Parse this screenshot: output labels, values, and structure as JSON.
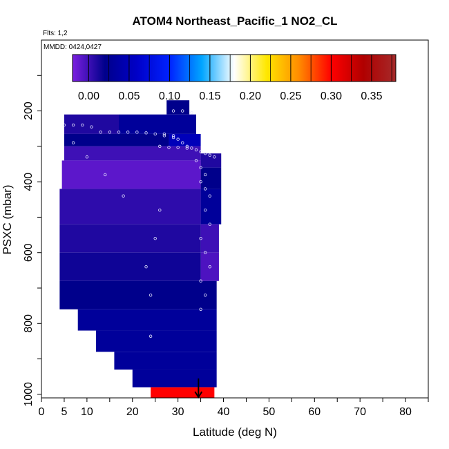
{
  "chart_data": {
    "type": "heatmap",
    "title": "ATOM4 Northeast_Pacific_1 NO2_CL",
    "annotations": {
      "flights": "Flts: 1,2",
      "dates": "MMDD: 0424,0427"
    },
    "xlabel": "Latitude (deg N)",
    "ylabel": "PSXC (mbar)",
    "xlim": [
      0,
      85
    ],
    "ylim": [
      1010,
      0
    ],
    "x_ticks": [
      0,
      5,
      10,
      20,
      30,
      40,
      50,
      60,
      70,
      80
    ],
    "y_ticks": [
      200,
      400,
      600,
      800,
      1000
    ],
    "colorbar": {
      "range": [
        -0.02,
        0.38
      ],
      "ticks": [
        "0.00",
        "0.05",
        "0.10",
        "0.15",
        "0.20",
        "0.25",
        "0.30",
        "0.35"
      ],
      "tick_values": [
        0,
        0.05,
        0.1,
        0.15,
        0.2,
        0.25,
        0.3,
        0.35
      ],
      "colors": [
        "#7b1fe0",
        "#00008b",
        "#0000c8",
        "#0022ff",
        "#00a5ff",
        "#ffffff",
        "#ffe800",
        "#ff8c00",
        "#ff0000",
        "#b00000",
        "#a52a2a"
      ]
    },
    "cells": [
      {
        "x0": 27.5,
        "x1": 32.5,
        "y0": 170,
        "y1": 210,
        "v": 0.02
      },
      {
        "x0": 5,
        "x1": 17,
        "y0": 210,
        "y1": 265,
        "v": 0.01
      },
      {
        "x0": 17,
        "x1": 34,
        "y0": 210,
        "y1": 265,
        "v": 0.03
      },
      {
        "x0": 5,
        "x1": 28,
        "y0": 265,
        "y1": 300,
        "v": 0.02
      },
      {
        "x0": 28,
        "x1": 35,
        "y0": 265,
        "y1": 300,
        "v": 0.05
      },
      {
        "x0": 5,
        "x1": 35,
        "y0": 300,
        "y1": 340,
        "v": 0.0
      },
      {
        "x0": 35,
        "x1": 39.5,
        "y0": 320,
        "y1": 360,
        "v": 0.01
      },
      {
        "x0": 4.5,
        "x1": 35,
        "y0": 340,
        "y1": 420,
        "v": -0.01
      },
      {
        "x0": 35,
        "x1": 39.5,
        "y0": 360,
        "y1": 420,
        "v": 0.02
      },
      {
        "x0": 4,
        "x1": 35,
        "y0": 420,
        "y1": 520,
        "v": 0.005
      },
      {
        "x0": 35,
        "x1": 39.5,
        "y0": 420,
        "y1": 520,
        "v": 0.03
      },
      {
        "x0": 4,
        "x1": 35,
        "y0": 520,
        "y1": 600,
        "v": 0.01
      },
      {
        "x0": 35,
        "x1": 39,
        "y0": 520,
        "y1": 600,
        "v": 0.0
      },
      {
        "x0": 4,
        "x1": 35,
        "y0": 600,
        "y1": 680,
        "v": 0.015
      },
      {
        "x0": 35,
        "x1": 39,
        "y0": 600,
        "y1": 680,
        "v": -0.005
      },
      {
        "x0": 4,
        "x1": 38.5,
        "y0": 680,
        "y1": 760,
        "v": 0.02
      },
      {
        "x0": 8,
        "x1": 38.5,
        "y0": 760,
        "y1": 820,
        "v": 0.03
      },
      {
        "x0": 12,
        "x1": 38.5,
        "y0": 820,
        "y1": 880,
        "v": 0.03
      },
      {
        "x0": 16,
        "x1": 38.5,
        "y0": 880,
        "y1": 930,
        "v": 0.03
      },
      {
        "x0": 20,
        "x1": 38.5,
        "y0": 930,
        "y1": 980,
        "v": 0.03
      },
      {
        "x0": 24,
        "x1": 38,
        "y0": 980,
        "y1": 1010,
        "v": 0.3
      }
    ],
    "track_points": [
      [
        5,
        240
      ],
      [
        7,
        240
      ],
      [
        9,
        240
      ],
      [
        11,
        245
      ],
      [
        13,
        260
      ],
      [
        15,
        260
      ],
      [
        17,
        260
      ],
      [
        19,
        260
      ],
      [
        21,
        260
      ],
      [
        23,
        262
      ],
      [
        25,
        265
      ],
      [
        27,
        270
      ],
      [
        29,
        275
      ],
      [
        30,
        280
      ],
      [
        31,
        290
      ],
      [
        32,
        300
      ],
      [
        33,
        305
      ],
      [
        34,
        310
      ],
      [
        35,
        315
      ],
      [
        36,
        320
      ],
      [
        37,
        325
      ],
      [
        38,
        330
      ],
      [
        29,
        200
      ],
      [
        31,
        200
      ],
      [
        33,
        205
      ],
      [
        27,
        265
      ],
      [
        29,
        270
      ],
      [
        26,
        300
      ],
      [
        28,
        303
      ],
      [
        30,
        303
      ],
      [
        32,
        305
      ],
      [
        34,
        340
      ],
      [
        35,
        360
      ],
      [
        36,
        380
      ],
      [
        35,
        400
      ],
      [
        36,
        420
      ],
      [
        37,
        440
      ],
      [
        36,
        480
      ],
      [
        37,
        520
      ],
      [
        35,
        560
      ],
      [
        36,
        600
      ],
      [
        37,
        640
      ],
      [
        35,
        680
      ],
      [
        36,
        720
      ],
      [
        35,
        760
      ],
      [
        24,
        720
      ],
      [
        23,
        640
      ],
      [
        25,
        560
      ],
      [
        26,
        480
      ],
      [
        18,
        440
      ],
      [
        14,
        380
      ],
      [
        10,
        330
      ],
      [
        7,
        290
      ],
      [
        24,
        836
      ]
    ],
    "marker": {
      "x": 34.5,
      "label": "arrow"
    }
  }
}
